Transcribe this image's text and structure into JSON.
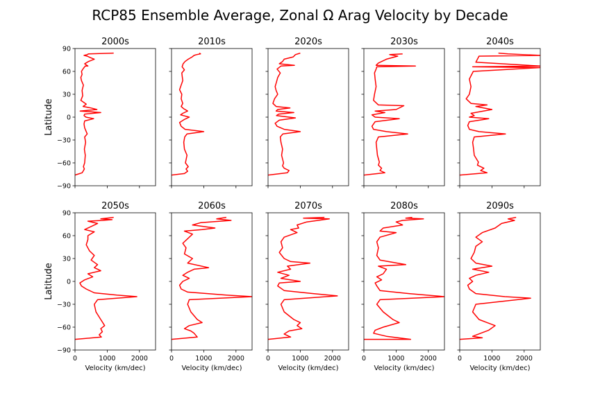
{
  "figure": {
    "title": "RCP85 Ensemble Average, Zonal Ω Arag Velocity by Decade"
  },
  "chart_data": [
    {
      "type": "line",
      "title": "2000s",
      "xlabel": "",
      "ylabel": "Latitude",
      "xlim": [
        0,
        2500
      ],
      "ylim": [
        -90,
        90
      ],
      "xticks": [],
      "yticks": [
        -90,
        -60,
        -30,
        0,
        30,
        60,
        90
      ],
      "series": [
        {
          "name": "",
          "color": "#ff0000",
          "x": [
            0,
            220,
            250,
            290,
            260,
            300,
            320,
            290,
            330,
            300,
            380,
            350,
            300,
            280,
            300,
            580,
            340,
            280,
            300,
            800,
            160,
            680,
            500,
            250,
            350,
            180,
            240,
            220,
            260,
            200,
            180,
            220,
            200,
            260,
            320,
            400,
            300,
            420,
            600,
            480,
            380,
            280,
            380,
            420,
            1200
          ],
          "y": [
            -76,
            -73,
            -71,
            -68,
            -65,
            -60,
            -50,
            -42,
            -33,
            -26,
            -22,
            -19,
            -14,
            -9,
            -5,
            -2,
            0,
            2,
            4,
            6,
            8,
            10,
            12,
            14,
            17,
            22,
            28,
            35,
            42,
            48,
            52,
            56,
            60,
            64,
            67,
            67,
            70,
            73,
            76,
            78,
            80,
            81,
            82,
            83,
            84
          ]
        }
      ]
    },
    {
      "type": "line",
      "title": "2010s",
      "xlabel": "",
      "ylabel": "",
      "xlim": [
        0,
        2500
      ],
      "ylim": [
        -90,
        90
      ],
      "xticks": [],
      "yticks": [],
      "series": [
        {
          "name": "",
          "color": "#ff0000",
          "x": [
            0,
            400,
            500,
            450,
            520,
            430,
            480,
            400,
            380,
            410,
            480,
            1000,
            420,
            300,
            250,
            400,
            550,
            280,
            350,
            500,
            380,
            300,
            350,
            300,
            320,
            250,
            300,
            350,
            330,
            320,
            400,
            330,
            360,
            420,
            520,
            640,
            700,
            780,
            900,
            860
          ],
          "y": [
            -76,
            -74,
            -71,
            -68,
            -65,
            -60,
            -50,
            -42,
            -33,
            -26,
            -22,
            -19,
            -16,
            -12,
            -7,
            -3,
            0,
            3,
            5,
            8,
            11,
            14,
            18,
            24,
            30,
            36,
            42,
            48,
            54,
            58,
            62,
            66,
            70,
            73,
            76,
            79,
            81,
            82,
            83,
            84
          ]
        }
      ]
    },
    {
      "type": "line",
      "title": "2020s",
      "xlabel": "",
      "ylabel": "",
      "xlim": [
        0,
        2500
      ],
      "ylim": [
        -90,
        90
      ],
      "xticks": [],
      "yticks": [],
      "series": [
        {
          "name": "",
          "color": "#ff0000",
          "x": [
            0,
            600,
            650,
            500,
            450,
            480,
            420,
            450,
            400,
            380,
            460,
            1000,
            500,
            280,
            220,
            350,
            850,
            260,
            330,
            800,
            250,
            300,
            680,
            250,
            150,
            200,
            300,
            250,
            220,
            260,
            300,
            380,
            280,
            400,
            820,
            350,
            450,
            500,
            780,
            850,
            1000
          ],
          "y": [
            -76,
            -73,
            -70,
            -67,
            -64,
            -60,
            -50,
            -42,
            -33,
            -26,
            -22,
            -19,
            -16,
            -12,
            -8,
            -4,
            -1,
            2,
            4,
            6,
            8,
            10,
            12,
            14,
            18,
            24,
            30,
            35,
            40,
            46,
            52,
            58,
            63,
            67,
            68,
            70,
            73,
            76,
            79,
            82,
            84
          ]
        }
      ]
    },
    {
      "type": "line",
      "title": "2030s",
      "xlabel": "",
      "ylabel": "",
      "xlim": [
        0,
        2500
      ],
      "ylim": [
        -90,
        90
      ],
      "xticks": [],
      "yticks": [],
      "series": [
        {
          "name": "",
          "color": "#ff0000",
          "x": [
            0,
            650,
            500,
            550,
            450,
            480,
            420,
            400,
            380,
            450,
            1360,
            700,
            300,
            250,
            350,
            1100,
            350,
            250,
            650,
            350,
            1000,
            1240,
            450,
            300,
            330,
            380,
            350,
            330,
            380,
            400,
            1600,
            380,
            450,
            700,
            1050,
            800,
            1200
          ],
          "y": [
            -76,
            -73,
            -70,
            -67,
            -63,
            -59,
            -50,
            -42,
            -33,
            -26,
            -22,
            -19,
            -16,
            -12,
            -6,
            -2,
            0,
            3,
            6,
            8,
            10,
            15,
            16,
            22,
            30,
            40,
            50,
            58,
            63,
            66,
            67,
            68,
            71,
            76,
            80,
            82,
            83
          ]
        }
      ]
    },
    {
      "type": "line",
      "title": "2040s",
      "xlabel": "",
      "ylabel": "",
      "xlim": [
        0,
        2500
      ],
      "ylim": [
        -90,
        90
      ],
      "xticks": [],
      "yticks": [],
      "series": [
        {
          "name": "",
          "color": "#ff0000",
          "x": [
            0,
            850,
            650,
            750,
            550,
            580,
            450,
            430,
            400,
            450,
            1420,
            600,
            300,
            250,
            300,
            900,
            300,
            450,
            350,
            1000,
            500,
            850,
            350,
            200,
            300,
            350,
            300,
            420,
            2500,
            400,
            2500,
            500,
            600,
            2500,
            1500,
            1200
          ],
          "y": [
            -76,
            -73,
            -70,
            -67,
            -63,
            -59,
            -50,
            -42,
            -33,
            -26,
            -22,
            -19,
            -16,
            -11,
            -6,
            -2,
            0,
            2,
            5,
            10,
            14,
            16,
            18,
            24,
            30,
            40,
            50,
            60,
            65,
            66,
            67,
            72,
            80,
            81,
            83,
            84
          ]
        }
      ]
    },
    {
      "type": "line",
      "title": "2050s",
      "xlabel": "Velocity (km/dec)",
      "ylabel": "Latitude",
      "xlim": [
        0,
        2500
      ],
      "ylim": [
        -90,
        90
      ],
      "xticks": [
        0,
        1000,
        2000
      ],
      "yticks": [
        -90,
        -60,
        -30,
        0,
        30,
        60,
        90
      ],
      "series": [
        {
          "name": "",
          "color": "#ff0000",
          "x": [
            0,
            820,
            750,
            850,
            800,
            920,
            800,
            650,
            600,
            700,
            1920,
            1300,
            600,
            350,
            200,
            150,
            300,
            550,
            400,
            800,
            600,
            700,
            500,
            600,
            450,
            350,
            400,
            400,
            600,
            300,
            500,
            700,
            400,
            850,
            1150,
            800,
            1200
          ],
          "y": [
            -76,
            -73,
            -70,
            -66,
            -62,
            -58,
            -50,
            -40,
            -30,
            -24,
            -20,
            -18,
            -15,
            -10,
            -6,
            -2,
            2,
            6,
            10,
            14,
            18,
            22,
            28,
            34,
            40,
            48,
            55,
            60,
            65,
            68,
            72,
            76,
            79,
            80,
            81,
            82,
            84
          ]
        }
      ]
    },
    {
      "type": "line",
      "title": "2060s",
      "xlabel": "Velocity (km/dec)",
      "ylabel": "",
      "xlim": [
        0,
        2500
      ],
      "ylim": [
        -90,
        90
      ],
      "xticks": [
        0,
        1000,
        2000
      ],
      "yticks": [],
      "series": [
        {
          "name": "",
          "color": "#ff0000",
          "x": [
            0,
            800,
            700,
            600,
            400,
            550,
            950,
            800,
            600,
            500,
            550,
            2500,
            1700,
            500,
            300,
            250,
            350,
            550,
            350,
            500,
            700,
            1150,
            500,
            650,
            400,
            450,
            350,
            500,
            650,
            400,
            950,
            1350,
            650,
            900,
            1850,
            1400,
            1700
          ],
          "y": [
            -76,
            -73,
            -68,
            -65,
            -62,
            -58,
            -54,
            -50,
            -40,
            -30,
            -24,
            -20,
            -18,
            -14,
            -10,
            -5,
            0,
            4,
            8,
            12,
            16,
            18,
            24,
            30,
            36,
            44,
            50,
            56,
            62,
            66,
            68,
            70,
            74,
            77,
            80,
            82,
            84
          ]
        }
      ]
    },
    {
      "type": "line",
      "title": "2070s",
      "xlabel": "Velocity (km/dec)",
      "ylabel": "",
      "xlim": [
        0,
        2500
      ],
      "ylim": [
        -90,
        90
      ],
      "xticks": [
        0,
        1000,
        2000
      ],
      "yticks": [],
      "series": [
        {
          "name": "",
          "color": "#ff0000",
          "x": [
            0,
            700,
            500,
            650,
            1050,
            900,
            1000,
            800,
            500,
            400,
            500,
            2150,
            1400,
            500,
            300,
            350,
            1000,
            400,
            650,
            300,
            700,
            600,
            1300,
            700,
            500,
            350,
            450,
            400,
            500,
            900,
            700,
            950,
            900,
            1200,
            1900,
            1100,
            1750
          ],
          "y": [
            -76,
            -73,
            -69,
            -65,
            -62,
            -58,
            -54,
            -50,
            -40,
            -30,
            -24,
            -19,
            -16,
            -12,
            -6,
            -2,
            0,
            4,
            8,
            12,
            16,
            20,
            24,
            26,
            30,
            38,
            44,
            52,
            58,
            64,
            68,
            70,
            74,
            78,
            82,
            83,
            84
          ]
        }
      ]
    },
    {
      "type": "line",
      "title": "2080s",
      "xlabel": "Velocity (km/dec)",
      "ylabel": "",
      "xlim": [
        0,
        2500
      ],
      "ylim": [
        -90,
        90
      ],
      "xticks": [
        0,
        1000,
        2000
      ],
      "yticks": [],
      "series": [
        {
          "name": "",
          "color": "#ff0000",
          "x": [
            0,
            1450,
            700,
            300,
            350,
            600,
            1100,
            900,
            600,
            400,
            500,
            2500,
            1400,
            500,
            400,
            350,
            550,
            400,
            600,
            700,
            450,
            1300,
            500,
            400,
            450,
            400,
            500,
            1000,
            500,
            600,
            1200,
            1000,
            1200,
            1850,
            1300,
            1500
          ],
          "y": [
            -76,
            -76,
            -72,
            -68,
            -64,
            -60,
            -54,
            -50,
            -40,
            -30,
            -24,
            -20,
            -16,
            -12,
            -6,
            -2,
            2,
            6,
            10,
            16,
            20,
            22,
            28,
            34,
            44,
            52,
            58,
            64,
            66,
            70,
            74,
            78,
            80,
            82,
            83,
            84
          ]
        }
      ]
    },
    {
      "type": "line",
      "title": "2090s",
      "xlabel": "Velocity (km/dec)",
      "ylabel": "",
      "xlim": [
        0,
        2500
      ],
      "ylim": [
        -90,
        90
      ],
      "xticks": [
        0,
        1000,
        2000
      ],
      "yticks": [],
      "series": [
        {
          "name": "",
          "color": "#ff0000",
          "x": [
            0,
            700,
            400,
            650,
            900,
            1100,
            850,
            600,
            400,
            500,
            2200,
            1400,
            500,
            300,
            250,
            400,
            300,
            500,
            900,
            400,
            1000,
            500,
            350,
            450,
            500,
            700,
            500,
            700,
            1100,
            1300,
            1700,
            1500,
            1750
          ],
          "y": [
            -76,
            -74,
            -72,
            -68,
            -64,
            -58,
            -54,
            -50,
            -40,
            -30,
            -22,
            -20,
            -16,
            -10,
            -5,
            0,
            4,
            8,
            12,
            16,
            20,
            24,
            30,
            38,
            46,
            52,
            58,
            64,
            70,
            76,
            80,
            82,
            84
          ]
        }
      ]
    }
  ]
}
